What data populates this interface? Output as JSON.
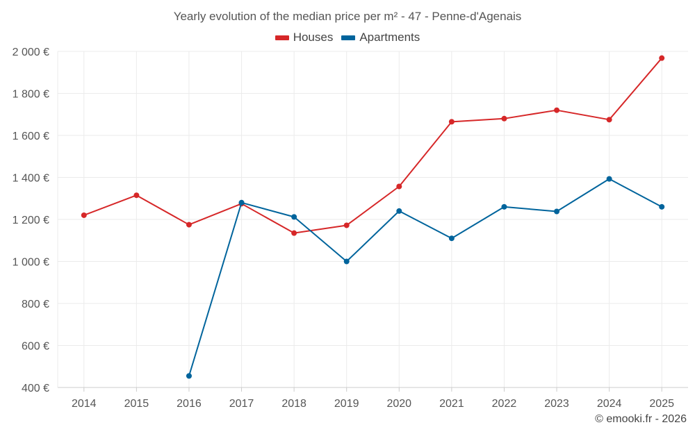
{
  "chart_data": {
    "type": "line",
    "title": "Yearly evolution of the median price per m² - 47 - Penne-d'Agenais",
    "categories": [
      "2014",
      "2015",
      "2016",
      "2017",
      "2018",
      "2019",
      "2020",
      "2021",
      "2022",
      "2023",
      "2024",
      "2025"
    ],
    "series": [
      {
        "name": "Houses",
        "color": "#d62728",
        "values": [
          1220,
          1315,
          1175,
          1275,
          1135,
          1172,
          1357,
          1665,
          1680,
          1720,
          1675,
          1968
        ]
      },
      {
        "name": "Apartments",
        "color": "#00649c",
        "values": [
          null,
          null,
          455,
          1280,
          1212,
          1000,
          1240,
          1110,
          1260,
          1238,
          1393,
          1260
        ]
      }
    ],
    "ylim": [
      400,
      2000
    ],
    "yticks": [
      400,
      600,
      800,
      1000,
      1200,
      1400,
      1600,
      1800,
      2000
    ],
    "ytick_labels": [
      "400 €",
      "600 €",
      "800 €",
      "1 000 €",
      "1 200 €",
      "1 400 €",
      "1 600 €",
      "1 800 €",
      "2 000 €"
    ],
    "xlabel": "",
    "ylabel": "",
    "grid": true,
    "legend_position": "top-center"
  },
  "credit": "© emooki.fr - 2026"
}
